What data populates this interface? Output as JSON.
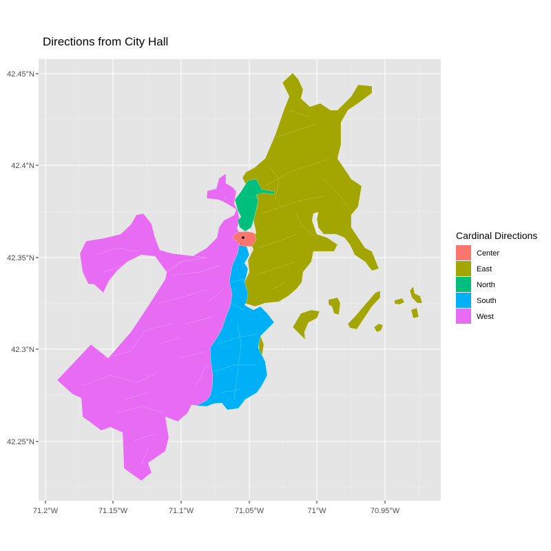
{
  "title": "Directions from City Hall",
  "map": {
    "panel_background": "#e5e5e5",
    "lon_range": [
      -71.2,
      -70.9
    ],
    "lat_range": [
      42.23,
      42.46
    ],
    "x_ticks": [
      {
        "value": -71.2,
        "label": "71.2°W"
      },
      {
        "value": -71.15,
        "label": "71.15°W"
      },
      {
        "value": -71.1,
        "label": "71.1°W"
      },
      {
        "value": -71.05,
        "label": "71.05°W"
      },
      {
        "value": -71.0,
        "label": "71°W"
      },
      {
        "value": -70.95,
        "label": "70.95°W"
      }
    ],
    "y_ticks": [
      {
        "value": 42.45,
        "label": "42.45°N"
      },
      {
        "value": 42.4,
        "label": "42.4°N"
      },
      {
        "value": 42.35,
        "label": "42.35°N"
      },
      {
        "value": 42.3,
        "label": "42.3°N"
      },
      {
        "value": 42.25,
        "label": "42.25°N"
      }
    ],
    "city_hall": {
      "lon": -71.058,
      "lat": 42.3604
    }
  },
  "legend": {
    "title": "Cardinal Directions",
    "position": "right",
    "items": [
      {
        "key": "center",
        "label": "Center",
        "color": "#F8766D"
      },
      {
        "key": "east",
        "label": "East",
        "color": "#A3A500"
      },
      {
        "key": "north",
        "label": "North",
        "color": "#00BF7D"
      },
      {
        "key": "south",
        "label": "South",
        "color": "#00B0F6"
      },
      {
        "key": "west",
        "label": "West",
        "color": "#E76BF3"
      }
    ]
  }
}
